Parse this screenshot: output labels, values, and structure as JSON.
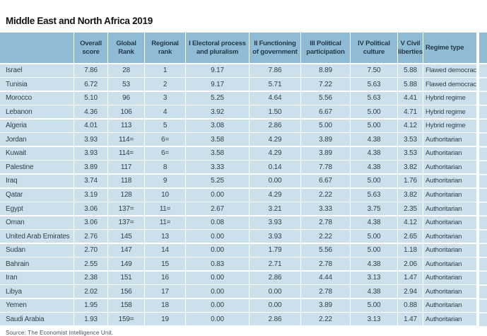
{
  "title": "Middle East and North Africa 2019",
  "table": {
    "columns": [
      {
        "key": "country",
        "label": ""
      },
      {
        "key": "overall",
        "label": "Overall\nscore"
      },
      {
        "key": "global",
        "label": "Global\nRank"
      },
      {
        "key": "regional",
        "label": "Regional\nrank"
      },
      {
        "key": "electoral",
        "label": "I Electoral process\nand pluralism"
      },
      {
        "key": "functioning",
        "label": "II Functioning\nof government"
      },
      {
        "key": "participation",
        "label": "III Political\nparticipation"
      },
      {
        "key": "culture",
        "label": "IV Political\nculture"
      },
      {
        "key": "liberties",
        "label": "V Civil\nliberties"
      },
      {
        "key": "regime",
        "label": "Regime type"
      }
    ],
    "rows": [
      {
        "country": "Israel",
        "overall": "7.86",
        "global": "28",
        "regional": "1",
        "electoral": "9.17",
        "functioning": "7.86",
        "participation": "8.89",
        "culture": "7.50",
        "liberties": "5.88",
        "regime": "Flawed democracy"
      },
      {
        "country": "Tunisia",
        "overall": "6.72",
        "global": "53",
        "regional": "2",
        "electoral": "9.17",
        "functioning": "5.71",
        "participation": "7.22",
        "culture": "5.63",
        "liberties": "5.88",
        "regime": "Flawed democracy"
      },
      {
        "country": "Morocco",
        "overall": "5.10",
        "global": "96",
        "regional": "3",
        "electoral": "5.25",
        "functioning": "4.64",
        "participation": "5.56",
        "culture": "5.63",
        "liberties": "4.41",
        "regime": "Hybrid regime"
      },
      {
        "country": "Lebanon",
        "overall": "4.36",
        "global": "106",
        "regional": "4",
        "electoral": "3.92",
        "functioning": "1.50",
        "participation": "6.67",
        "culture": "5.00",
        "liberties": "4.71",
        "regime": "Hybrid regime"
      },
      {
        "country": "Algeria",
        "overall": "4.01",
        "global": "113",
        "regional": "5",
        "electoral": "3.08",
        "functioning": "2.86",
        "participation": "5.00",
        "culture": "5.00",
        "liberties": "4.12",
        "regime": "Hybrid regime"
      },
      {
        "country": "Jordan",
        "overall": "3.93",
        "global": "114=",
        "regional": "6=",
        "electoral": "3.58",
        "functioning": "4.29",
        "participation": "3.89",
        "culture": "4.38",
        "liberties": "3.53",
        "regime": "Authoritarian"
      },
      {
        "country": "Kuwait",
        "overall": "3.93",
        "global": "114=",
        "regional": "6=",
        "electoral": "3.58",
        "functioning": "4.29",
        "participation": "3.89",
        "culture": "4.38",
        "liberties": "3.53",
        "regime": "Authoritarian"
      },
      {
        "country": "Palestine",
        "overall": "3.89",
        "global": "117",
        "regional": "8",
        "electoral": "3.33",
        "functioning": "0.14",
        "participation": "7.78",
        "culture": "4.38",
        "liberties": "3.82",
        "regime": "Authoritarian"
      },
      {
        "country": "Iraq",
        "overall": "3.74",
        "global": "118",
        "regional": "9",
        "electoral": "5.25",
        "functioning": "0.00",
        "participation": "6.67",
        "culture": "5.00",
        "liberties": "1.76",
        "regime": "Authoritarian"
      },
      {
        "country": "Qatar",
        "overall": "3.19",
        "global": "128",
        "regional": "10",
        "electoral": "0.00",
        "functioning": "4.29",
        "participation": "2.22",
        "culture": "5.63",
        "liberties": "3.82",
        "regime": "Authoritarian"
      },
      {
        "country": "Egypt",
        "overall": "3.06",
        "global": "137=",
        "regional": "11=",
        "electoral": "2.67",
        "functioning": "3.21",
        "participation": "3.33",
        "culture": "3.75",
        "liberties": "2.35",
        "regime": "Authoritarian"
      },
      {
        "country": "Oman",
        "overall": "3.06",
        "global": "137=",
        "regional": "11=",
        "electoral": "0.08",
        "functioning": "3.93",
        "participation": "2.78",
        "culture": "4.38",
        "liberties": "4.12",
        "regime": "Authoritarian"
      },
      {
        "country": "United Arab Emirates",
        "overall": "2.76",
        "global": "145",
        "regional": "13",
        "electoral": "0.00",
        "functioning": "3.93",
        "participation": "2.22",
        "culture": "5.00",
        "liberties": "2.65",
        "regime": "Authoritarian"
      },
      {
        "country": "Sudan",
        "overall": "2.70",
        "global": "147",
        "regional": "14",
        "electoral": "0.00",
        "functioning": "1.79",
        "participation": "5.56",
        "culture": "5.00",
        "liberties": "1.18",
        "regime": "Authoritarian"
      },
      {
        "country": "Bahrain",
        "overall": "2.55",
        "global": "149",
        "regional": "15",
        "electoral": "0.83",
        "functioning": "2.71",
        "participation": "2.78",
        "culture": "4.38",
        "liberties": "2.06",
        "regime": "Authoritarian"
      },
      {
        "country": "Iran",
        "overall": "2.38",
        "global": "151",
        "regional": "16",
        "electoral": "0.00",
        "functioning": "2.86",
        "participation": "4.44",
        "culture": "3.13",
        "liberties": "1.47",
        "regime": "Authoritarian"
      },
      {
        "country": "Libya",
        "overall": "2.02",
        "global": "156",
        "regional": "17",
        "electoral": "0.00",
        "functioning": "0.00",
        "participation": "2.78",
        "culture": "4.38",
        "liberties": "2.94",
        "regime": "Authoritarian"
      },
      {
        "country": "Yemen",
        "overall": "1.95",
        "global": "158",
        "regional": "18",
        "electoral": "0.00",
        "functioning": "0.00",
        "participation": "3.89",
        "culture": "5.00",
        "liberties": "0.88",
        "regime": "Authoritarian"
      },
      {
        "country": "Saudi Arabia",
        "overall": "1.93",
        "global": "159=",
        "regional": "19",
        "electoral": "0.00",
        "functioning": "2.86",
        "participation": "2.22",
        "culture": "3.13",
        "liberties": "1.47",
        "regime": "Authoritarian"
      }
    ]
  },
  "footer": {
    "source": "Source: The Economist Intelligence Unit."
  },
  "colors": {
    "header_bg": "#8fbcd4",
    "row_bg": "#cbe0eb",
    "header_text": "#25394a",
    "body_text": "#32414e",
    "title_text": "#101010",
    "separator": "#ffffff"
  }
}
